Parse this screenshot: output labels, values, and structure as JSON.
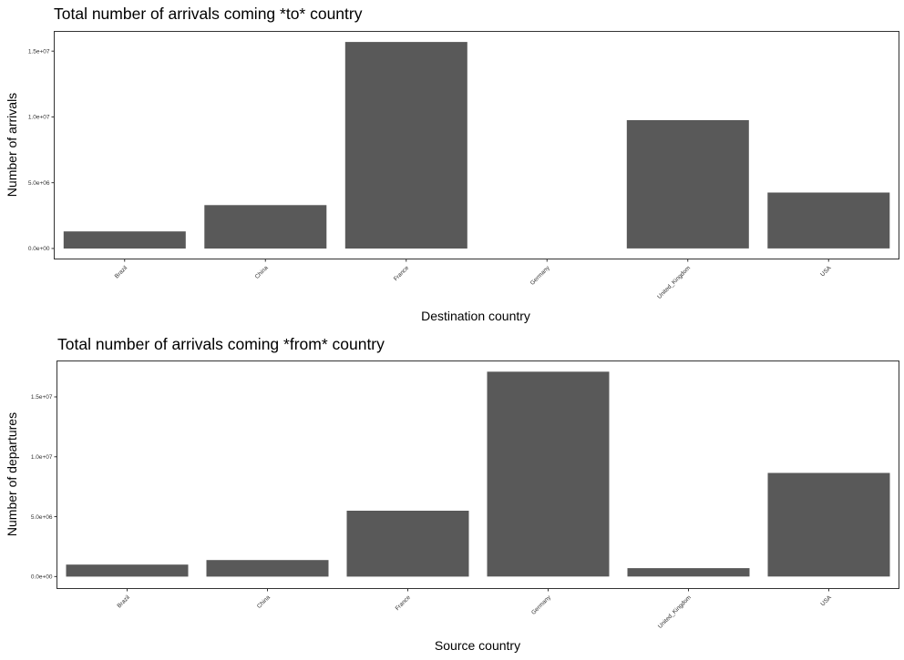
{
  "chart_data": [
    {
      "type": "bar",
      "title": "Total number of arrivals coming *to* country",
      "xlabel": "Destination country",
      "ylabel": "Number of arrivals",
      "categories": [
        "Brazil",
        "China",
        "France",
        "Germany",
        "United_Kingdom",
        "USA"
      ],
      "values": [
        1300000,
        3300000,
        15700000,
        0,
        9750000,
        4250000
      ],
      "ylim": [
        -800000,
        16500000
      ],
      "yticks": [
        0,
        5000000,
        10000000,
        15000000
      ],
      "ytick_labels": [
        "0.0e+00",
        "5.0e+06",
        "1.0e+07",
        "1.5e+07"
      ],
      "grid": false,
      "bar_color": "#595959"
    },
    {
      "type": "bar",
      "title": "Total number of arrivals coming *from* country",
      "xlabel": "Source country",
      "ylabel": "Number of departures",
      "categories": [
        "Brazil",
        "China",
        "France",
        "Germany",
        "United_Kingdom",
        "USA"
      ],
      "values": [
        1000000,
        1380000,
        5500000,
        17100000,
        700000,
        8650000
      ],
      "ylim": [
        -1000000,
        18000000
      ],
      "yticks": [
        0,
        5000000,
        10000000,
        15000000
      ],
      "ytick_labels": [
        "0.0e+00",
        "5.0e+06",
        "1.0e+07",
        "1.5e+07"
      ],
      "grid": false,
      "bar_color": "#595959"
    }
  ]
}
